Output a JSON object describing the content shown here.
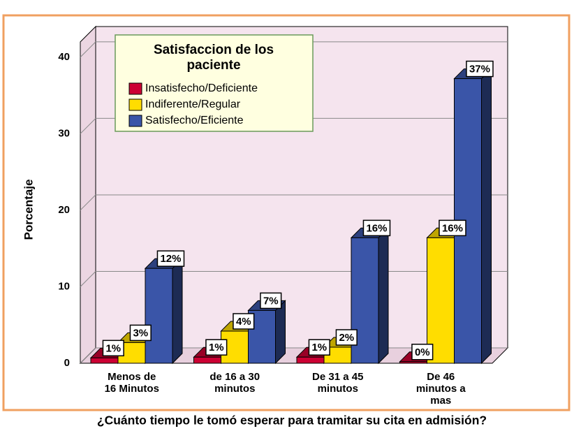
{
  "chart_data": {
    "type": "bar3d",
    "legend_title": "Satisfaccion de los paciente",
    "x_label": "¿Cuánto tiempo le tomó esperar para tramitar su cita en admisión?",
    "y_label": "Porcentaje",
    "categories": [
      "Menos de\n16 Minutos",
      "de 16 a 30\nminutos",
      "De 31 a 45\nminutos",
      "De 46\nminutos a\nmas"
    ],
    "series": [
      {
        "name": "Insatisfecho/Deficiente",
        "color": "#cc0033",
        "values": [
          0.7,
          0.8,
          0.8,
          0.2
        ],
        "value_labels": [
          "1%",
          "1%",
          "1%",
          "0%"
        ]
      },
      {
        "name": "Indiferente/Regular",
        "color": "#ffdd00",
        "values": [
          2.7,
          4.2,
          2.1,
          16.4
        ],
        "value_labels": [
          "3%",
          "4%",
          "2%",
          "16%"
        ]
      },
      {
        "name": "Satisfecho/Eficiente",
        "color": "#3a55a8",
        "values": [
          12.4,
          6.9,
          16.4,
          37.2
        ],
        "value_labels": [
          "12%",
          "7%",
          "16%",
          "37%"
        ]
      }
    ],
    "ylim": [
      0,
      42
    ],
    "yticks": [
      0,
      10,
      20,
      30,
      40
    ],
    "grid": true
  }
}
